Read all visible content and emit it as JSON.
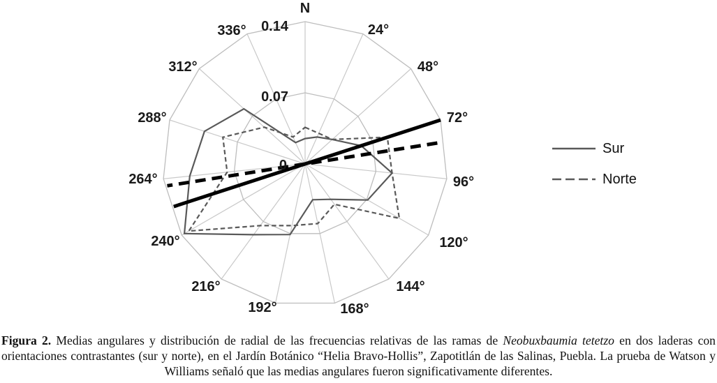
{
  "figure": {
    "caption_segments": [
      {
        "text": "Figura 2.",
        "bold": true,
        "italic": false
      },
      {
        "text": " Medias angulares y distribución de radial de las frecuencias relativas de las ramas de ",
        "bold": false,
        "italic": false
      },
      {
        "text": "Neobuxbaumia tetetzo",
        "bold": false,
        "italic": true
      },
      {
        "text": " en dos laderas con orientaciones contrastantes (sur y norte), en el Jardín Botánico “Helia Bravo-Hollis”, Zapotitlán de las Salinas, Puebla. La prueba de Watson y Williams señaló que las medias angulares fueron significativamente diferentes.",
        "bold": false,
        "italic": false
      }
    ]
  },
  "chart_data": {
    "type": "radar",
    "grid": "polygon-web",
    "grid_color": "#bdbdbd",
    "spoke_color": "#c9c9c9",
    "north_label": "N",
    "angles_deg": [
      0,
      24,
      48,
      72,
      96,
      120,
      144,
      168,
      192,
      216,
      240,
      264,
      288,
      312,
      336
    ],
    "angle_labels": [
      "N",
      "24°",
      "48°",
      "72°",
      "96°",
      "120°",
      "144°",
      "168°",
      "192°",
      "216°",
      "240°",
      "264°",
      "288°",
      "312°",
      "336°"
    ],
    "radial_ticks": [
      0,
      0.07,
      0.14
    ],
    "radial_tick_labels": [
      "0",
      "0.07",
      "0.14"
    ],
    "rmax": 0.14,
    "series": [
      {
        "name": "Sur",
        "line_style": "solid",
        "color": "#595959",
        "values": [
          0.025,
          0.029,
          0.036,
          0.058,
          0.086,
          0.071,
          0.043,
          0.036,
          0.071,
          0.086,
          0.137,
          0.114,
          0.104,
          0.081,
          0.023
        ]
      },
      {
        "name": "Norte",
        "line_style": "dashed",
        "color": "#595959",
        "values": [
          0.036,
          0.033,
          0.036,
          0.085,
          0.086,
          0.107,
          0.049,
          0.06,
          0.062,
          0.075,
          0.132,
          0.077,
          0.085,
          0.054,
          0.029
        ]
      }
    ],
    "mean_direction_lines": [
      {
        "series": "Sur",
        "angle_deg": 72,
        "line_style": "solid",
        "color": "#000000"
      },
      {
        "series": "Norte",
        "angle_deg": 81,
        "line_style": "dashed",
        "color": "#000000"
      }
    ],
    "legend": {
      "position": "right",
      "items": [
        "Sur",
        "Norte"
      ]
    }
  }
}
